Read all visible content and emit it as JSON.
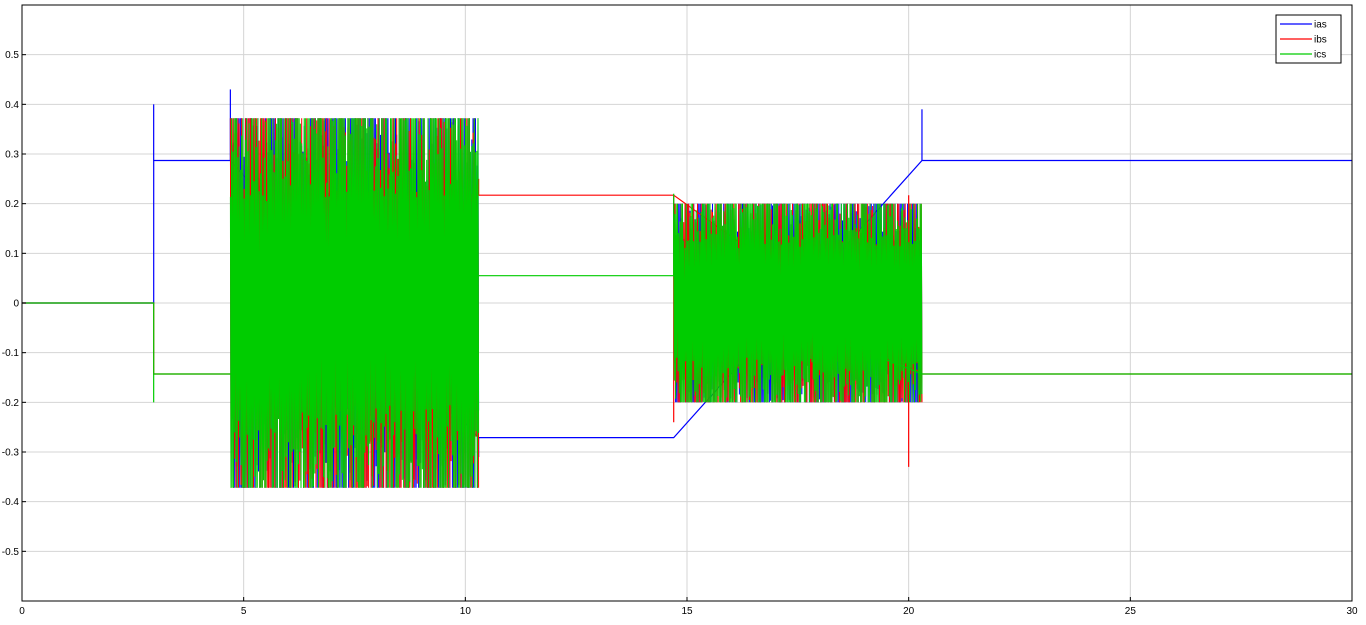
{
  "chart_data": {
    "type": "line",
    "title": "",
    "xlabel": "",
    "ylabel": "",
    "xlim": [
      0,
      30
    ],
    "ylim": [
      -0.6,
      0.6
    ],
    "xticks": [
      0,
      5,
      10,
      15,
      20,
      25,
      30
    ],
    "yticks": [
      -0.5,
      -0.4,
      -0.3,
      -0.2,
      -0.1,
      0,
      0.1,
      0.2,
      0.3,
      0.4,
      0.5
    ],
    "xtick_labels": [
      "0",
      "5",
      "10",
      "15",
      "20",
      "25",
      "30"
    ],
    "ytick_labels": [
      "-0.5",
      "-0.4",
      "-0.3",
      "-0.2",
      "-0.1",
      "0",
      "0.1",
      "0.2",
      "0.3",
      "0.4",
      "0.5"
    ],
    "grid": true,
    "legend_position": "top-right",
    "series": [
      {
        "name": "ias",
        "color": "#0000ff",
        "steps": [
          {
            "x": 0,
            "y": 0
          },
          {
            "x": 2.97,
            "y": 0
          },
          {
            "x": 2.97,
            "y": 0.287
          },
          {
            "x": 4.7,
            "y": 0.287
          },
          {
            "x": 10.3,
            "y": -0.271
          },
          {
            "x": 14.7,
            "y": -0.271
          },
          {
            "x": 20.3,
            "y": 0.287
          },
          {
            "x": 30,
            "y": 0.287
          }
        ],
        "spikes": [
          {
            "x": 2.97,
            "y": 0.4
          },
          {
            "x": 4.7,
            "y": 0.43
          },
          {
            "x": 10.3,
            "y": -0.31
          },
          {
            "x": 20.3,
            "y": 0.39
          }
        ],
        "oscillation": [
          {
            "x_start": 4.7,
            "x_end": 10.3,
            "amplitude": 0.372
          },
          {
            "x_start": 14.7,
            "x_end": 20.3,
            "amplitude": 0.2
          }
        ]
      },
      {
        "name": "ibs",
        "color": "#ff0000",
        "steps": [
          {
            "x": 0,
            "y": 0
          },
          {
            "x": 2.97,
            "y": 0
          },
          {
            "x": 2.97,
            "y": -0.143
          },
          {
            "x": 4.7,
            "y": -0.143
          },
          {
            "x": 10.3,
            "y": 0.217
          },
          {
            "x": 14.7,
            "y": 0.217
          },
          {
            "x": 20.3,
            "y": -0.143
          },
          {
            "x": 30,
            "y": -0.143
          }
        ],
        "spikes": [
          {
            "x": 10.3,
            "y": 0.25
          },
          {
            "x": 14.7,
            "y": -0.24
          },
          {
            "x": 20.0,
            "y": -0.33
          }
        ],
        "oscillation": [
          {
            "x_start": 4.7,
            "x_end": 10.3,
            "amplitude": 0.372
          },
          {
            "x_start": 14.7,
            "x_end": 20.3,
            "amplitude": 0.2
          }
        ]
      },
      {
        "name": "ics",
        "color": "#00cc00",
        "steps": [
          {
            "x": 0,
            "y": 0
          },
          {
            "x": 2.97,
            "y": 0
          },
          {
            "x": 2.97,
            "y": -0.143
          },
          {
            "x": 4.7,
            "y": -0.143
          },
          {
            "x": 10.3,
            "y": 0.055
          },
          {
            "x": 14.7,
            "y": 0.055
          },
          {
            "x": 20.3,
            "y": -0.143
          },
          {
            "x": 30,
            "y": -0.143
          }
        ],
        "spikes": [
          {
            "x": 2.97,
            "y": -0.2
          },
          {
            "x": 14.7,
            "y": 0.22
          }
        ],
        "oscillation": [
          {
            "x_start": 4.7,
            "x_end": 10.3,
            "amplitude": 0.372
          },
          {
            "x_start": 14.7,
            "x_end": 20.3,
            "amplitude": 0.2
          }
        ]
      }
    ]
  }
}
